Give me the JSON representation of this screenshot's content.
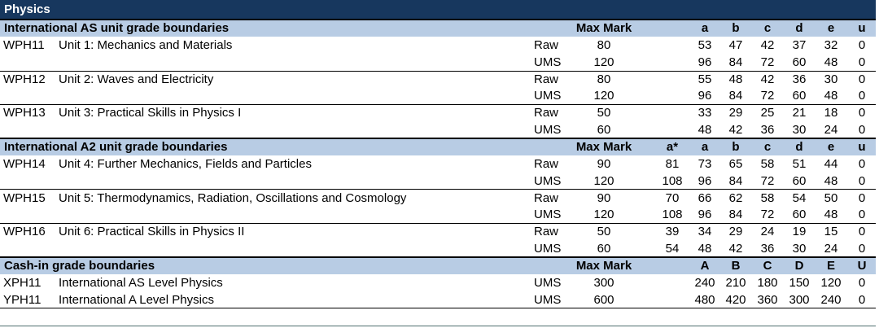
{
  "title": "Physics",
  "sections": [
    {
      "heading": "International AS unit grade boundaries",
      "max_mark_label": "Max Mark",
      "grade_columns": [
        "a",
        "b",
        "c",
        "d",
        "e",
        "u"
      ],
      "units": [
        {
          "code": "WPH11",
          "name": "Unit 1: Mechanics and Materials",
          "rows": [
            {
              "scale": "Raw",
              "max": 80,
              "grades": [
                53,
                47,
                42,
                37,
                32,
                0
              ]
            },
            {
              "scale": "UMS",
              "max": 120,
              "grades": [
                96,
                84,
                72,
                60,
                48,
                0
              ]
            }
          ]
        },
        {
          "code": "WPH12",
          "name": "Unit 2: Waves and Electricity",
          "rows": [
            {
              "scale": "Raw",
              "max": 80,
              "grades": [
                55,
                48,
                42,
                36,
                30,
                0
              ]
            },
            {
              "scale": "UMS",
              "max": 120,
              "grades": [
                96,
                84,
                72,
                60,
                48,
                0
              ]
            }
          ]
        },
        {
          "code": "WPH13",
          "name": "Unit 3: Practical Skills in Physics I",
          "rows": [
            {
              "scale": "Raw",
              "max": 50,
              "grades": [
                33,
                29,
                25,
                21,
                18,
                0
              ]
            },
            {
              "scale": "UMS",
              "max": 60,
              "grades": [
                48,
                42,
                36,
                30,
                24,
                0
              ]
            }
          ]
        }
      ]
    },
    {
      "heading": "International A2 unit grade boundaries",
      "max_mark_label": "Max Mark",
      "grade_columns": [
        "a*",
        "a",
        "b",
        "c",
        "d",
        "e",
        "u"
      ],
      "units": [
        {
          "code": "WPH14",
          "name": "Unit 4: Further Mechanics, Fields and Particles",
          "rows": [
            {
              "scale": "Raw",
              "max": 90,
              "grades": [
                81,
                73,
                65,
                58,
                51,
                44,
                0
              ]
            },
            {
              "scale": "UMS",
              "max": 120,
              "grades": [
                108,
                96,
                84,
                72,
                60,
                48,
                0
              ]
            }
          ]
        },
        {
          "code": "WPH15",
          "name": "Unit 5: Thermodynamics, Radiation, Oscillations and Cosmology",
          "rows": [
            {
              "scale": "Raw",
              "max": 90,
              "grades": [
                70,
                66,
                62,
                58,
                54,
                50,
                0
              ]
            },
            {
              "scale": "UMS",
              "max": 120,
              "grades": [
                108,
                96,
                84,
                72,
                60,
                48,
                0
              ]
            }
          ]
        },
        {
          "code": "WPH16",
          "name": "Unit 6: Practical Skills in Physics II",
          "rows": [
            {
              "scale": "Raw",
              "max": 50,
              "grades": [
                39,
                34,
                29,
                24,
                19,
                15,
                0
              ]
            },
            {
              "scale": "UMS",
              "max": 60,
              "grades": [
                54,
                48,
                42,
                36,
                30,
                24,
                0
              ]
            }
          ]
        }
      ]
    },
    {
      "heading": "Cash-in grade boundaries",
      "max_mark_label": "Max Mark",
      "grade_columns": [
        "A",
        "B",
        "C",
        "D",
        "E",
        "U"
      ],
      "units": [
        {
          "code": "XPH11",
          "name": "International AS Level Physics",
          "rows": [
            {
              "scale": "UMS",
              "max": 300,
              "grades": [
                240,
                210,
                180,
                150,
                120,
                0
              ]
            }
          ]
        },
        {
          "code": "YPH11",
          "name": "International A Level Physics",
          "rows": [
            {
              "scale": "UMS",
              "max": 600,
              "grades": [
                480,
                420,
                360,
                300,
                240,
                0
              ]
            }
          ]
        }
      ]
    }
  ]
}
